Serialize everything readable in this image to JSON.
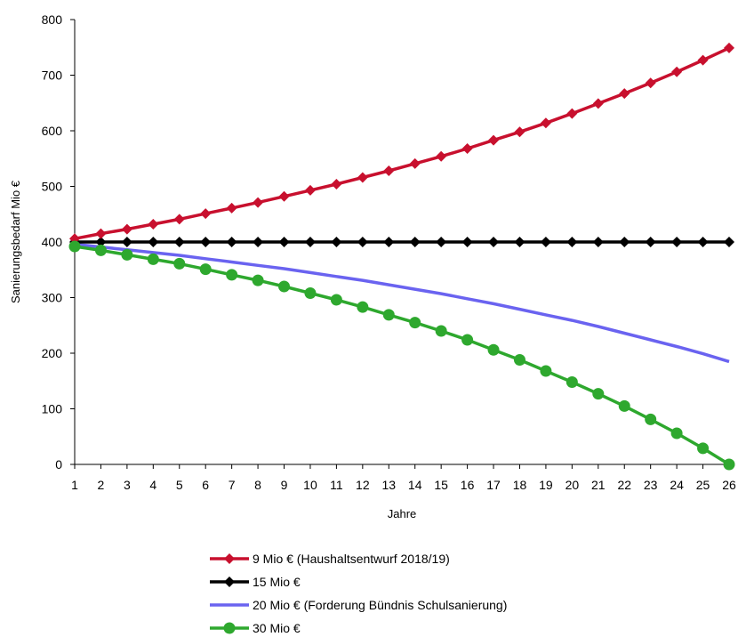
{
  "chart_data": {
    "type": "line",
    "title": "",
    "xlabel": "Jahre",
    "ylabel": "Sanierungsbedarf Mio €",
    "x": [
      1,
      2,
      3,
      4,
      5,
      6,
      7,
      8,
      9,
      10,
      11,
      12,
      13,
      14,
      15,
      16,
      17,
      18,
      19,
      20,
      21,
      22,
      23,
      24,
      25,
      26
    ],
    "xlim": [
      1,
      26
    ],
    "ylim": [
      0,
      800
    ],
    "yticks": [
      0,
      100,
      200,
      300,
      400,
      500,
      600,
      700,
      800
    ],
    "grid": false,
    "legend_position": "bottom",
    "series": [
      {
        "name": "9 Mio € (Haushaltsentwurf 2018/19)",
        "color": "#c8102e",
        "marker": "diamond",
        "values": [
          406,
          415,
          423,
          432,
          441,
          451,
          461,
          471,
          482,
          493,
          504,
          516,
          528,
          541,
          554,
          568,
          583,
          598,
          614,
          631,
          649,
          667,
          686,
          706,
          727,
          749
        ]
      },
      {
        "name": "15 Mio €",
        "color": "#000000",
        "marker": "diamond",
        "values": [
          400,
          400,
          400,
          400,
          400,
          400,
          400,
          400,
          400,
          400,
          400,
          400,
          400,
          400,
          400,
          400,
          400,
          400,
          400,
          400,
          400,
          400,
          400,
          400,
          400,
          400
        ]
      },
      {
        "name": "20 Mio € (Forderung Bündnis Schulsanierung)",
        "color": "#6a63f0",
        "marker": "none",
        "values": [
          396,
          391,
          386,
          381,
          376,
          370,
          364,
          358,
          352,
          345,
          338,
          331,
          323,
          315,
          307,
          298,
          289,
          279,
          269,
          259,
          248,
          236,
          224,
          212,
          199,
          185
        ]
      },
      {
        "name": "30 Mio €",
        "color": "#2ea82e",
        "marker": "circle",
        "values": [
          392,
          385,
          377,
          369,
          361,
          351,
          341,
          331,
          320,
          308,
          296,
          283,
          269,
          255,
          240,
          224,
          206,
          188,
          168,
          148,
          127,
          105,
          81,
          56,
          29,
          0
        ]
      }
    ]
  }
}
